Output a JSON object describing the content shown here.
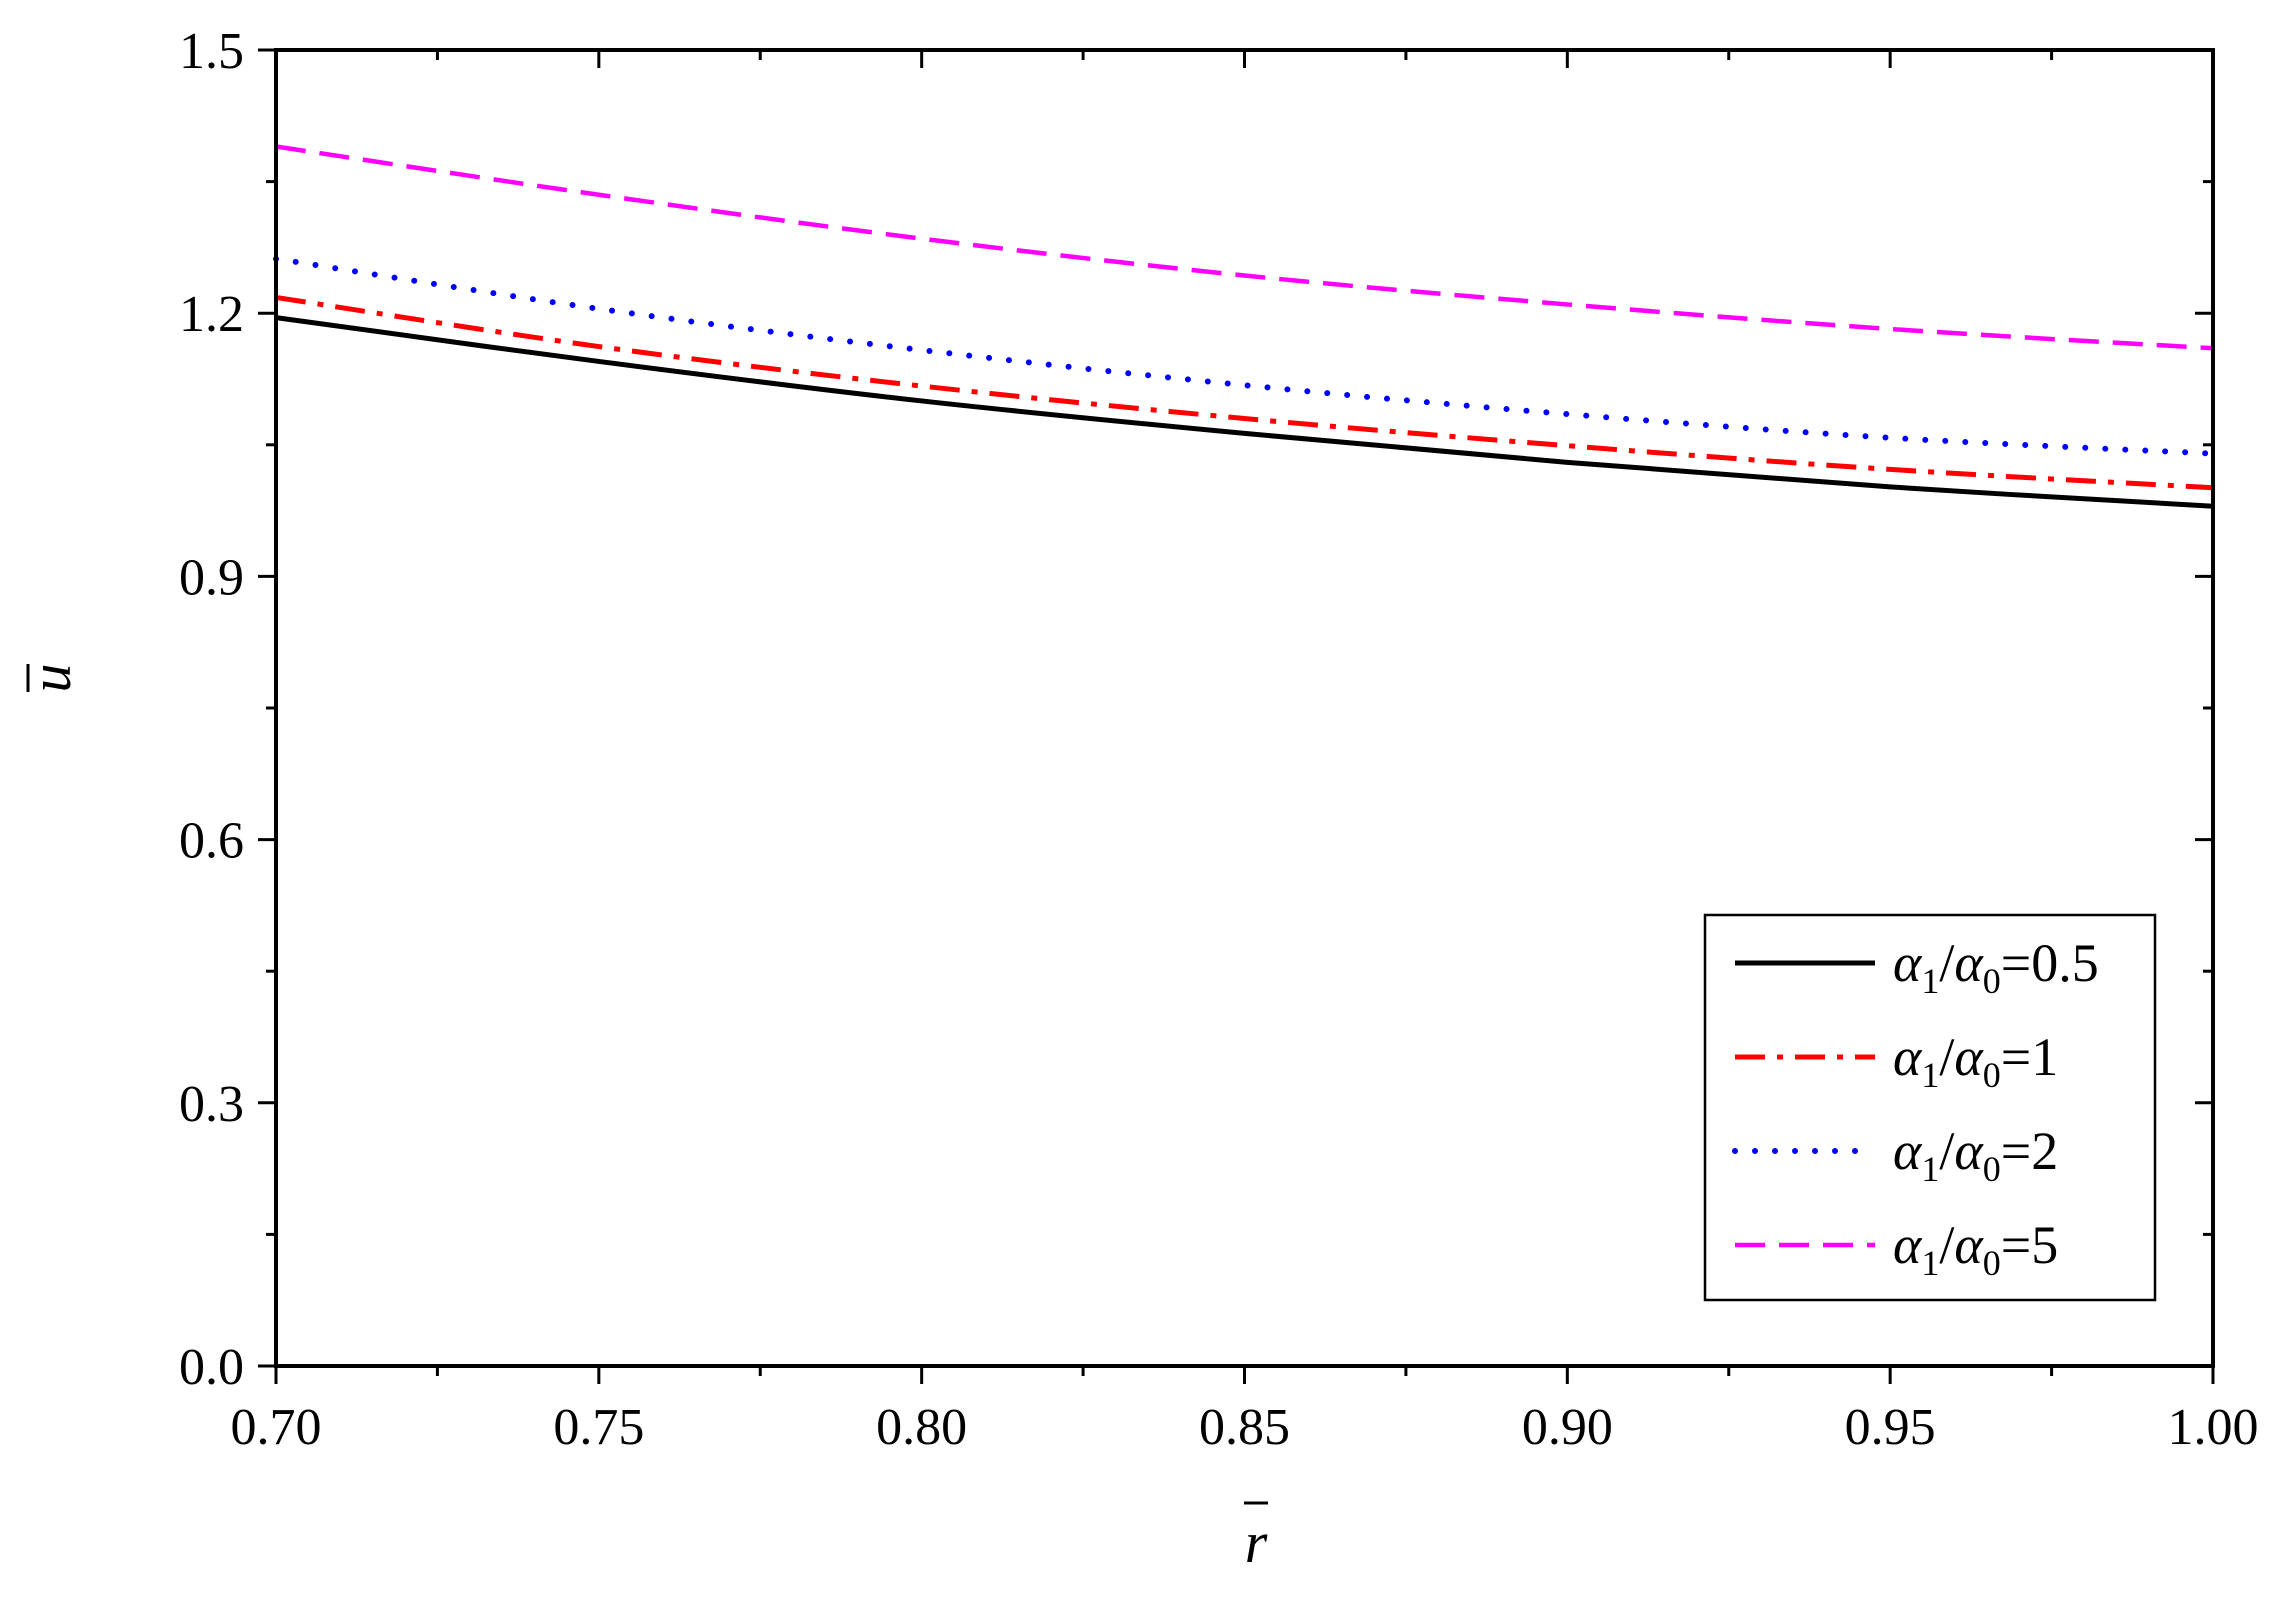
{
  "chart_data": {
    "type": "line",
    "title": "",
    "xlabel": "r",
    "ylabel": "u",
    "xlim": [
      0.7,
      1.0
    ],
    "ylim": [
      0.0,
      1.5
    ],
    "xticks": [
      "0.70",
      "0.75",
      "0.80",
      "0.85",
      "0.90",
      "0.95",
      "1.00"
    ],
    "yticks": [
      "0.0",
      "0.3",
      "0.6",
      "0.9",
      "1.2",
      "1.5"
    ],
    "x_tick_values": [
      0.7,
      0.75,
      0.8,
      0.85,
      0.9,
      0.95,
      1.0
    ],
    "y_tick_values": [
      0.0,
      0.3,
      0.6,
      0.9,
      1.2,
      1.5
    ],
    "grid": false,
    "legend_position": "bottom-right",
    "x": [
      0.7,
      0.75,
      0.8,
      0.85,
      0.9,
      0.95,
      1.0
    ],
    "series": [
      {
        "name": "α1/α0=0.5",
        "legend": {
          "a": "α",
          "s1": "1",
          "slash": "/",
          "b": "α",
          "s0": "0",
          "eq": "=0.5"
        },
        "color": "#000000",
        "dash": "solid",
        "values": [
          1.195,
          1.145,
          1.1,
          1.063,
          1.03,
          1.002,
          0.98
        ]
      },
      {
        "name": "α1/α0=1",
        "legend": {
          "a": "α",
          "s1": "1",
          "slash": "/",
          "b": "α",
          "s0": "0",
          "eq": "=1"
        },
        "color": "#ff0000",
        "dash": "dashdot",
        "values": [
          1.218,
          1.162,
          1.117,
          1.08,
          1.049,
          1.022,
          1.001
        ]
      },
      {
        "name": "α1/α0=2",
        "legend": {
          "a": "α",
          "s1": "1",
          "slash": "/",
          "b": "α",
          "s0": "0",
          "eq": "=2"
        },
        "color": "#0000ff",
        "dash": "dot",
        "values": [
          1.262,
          1.205,
          1.158,
          1.118,
          1.085,
          1.058,
          1.04
        ]
      },
      {
        "name": "α1/α0=5",
        "legend": {
          "a": "α",
          "s1": "1",
          "slash": "/",
          "b": "α",
          "s0": "0",
          "eq": "=5"
        },
        "color": "#ff00ff",
        "dash": "dash",
        "values": [
          1.39,
          1.335,
          1.285,
          1.243,
          1.21,
          1.182,
          1.16
        ]
      }
    ]
  }
}
